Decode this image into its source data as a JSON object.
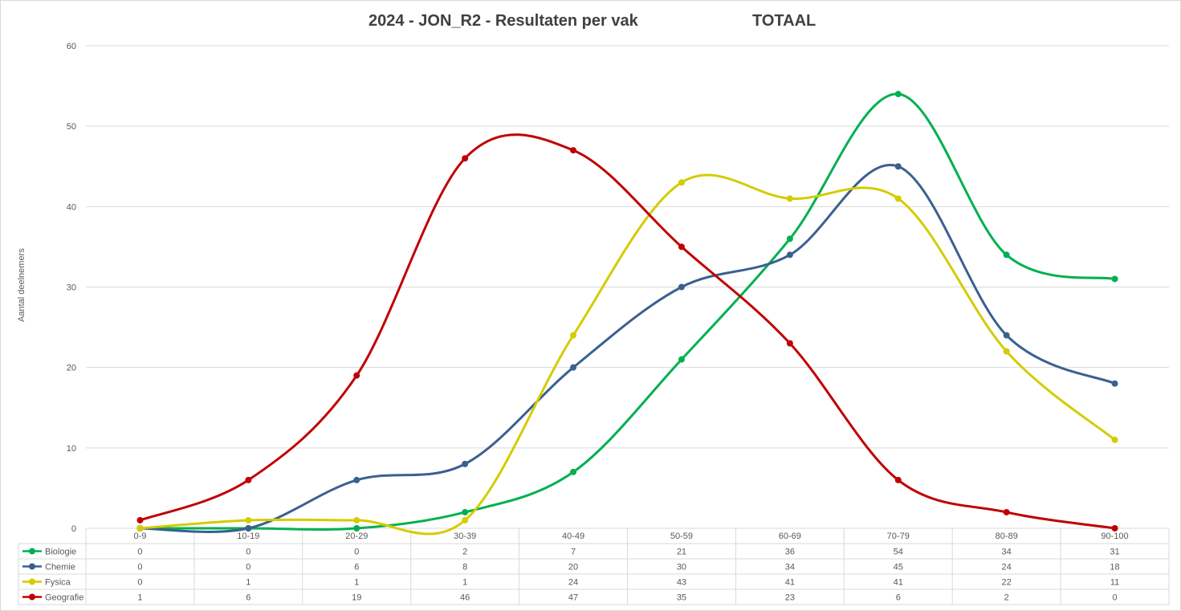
{
  "chart_data": {
    "type": "line",
    "title": "2024 - JON_R2 - Resultaten per vak",
    "subtitle": "TOTAAL",
    "xlabel": "",
    "ylabel": "Aantal deelnemers",
    "ylim": [
      0,
      60
    ],
    "yticks": [
      0,
      10,
      20,
      30,
      40,
      50,
      60
    ],
    "grid": true,
    "legend": "data table below chart",
    "categories": [
      "0-9",
      "10-19",
      "20-29",
      "30-39",
      "40-49",
      "50-59",
      "60-69",
      "70-79",
      "80-89",
      "90-100"
    ],
    "series": [
      {
        "name": "Biologie",
        "color": "#00b050",
        "values": [
          0,
          0,
          0,
          2,
          7,
          21,
          36,
          54,
          34,
          31
        ]
      },
      {
        "name": "Chemie",
        "color": "#3a6090",
        "values": [
          0,
          0,
          6,
          8,
          20,
          30,
          34,
          45,
          24,
          18
        ]
      },
      {
        "name": "Fysica",
        "color": "#d4cc00",
        "values": [
          0,
          1,
          1,
          1,
          24,
          43,
          41,
          41,
          22,
          11
        ]
      },
      {
        "name": "Geografie",
        "color": "#c00000",
        "values": [
          1,
          6,
          19,
          46,
          47,
          35,
          23,
          6,
          2,
          0
        ]
      }
    ]
  }
}
